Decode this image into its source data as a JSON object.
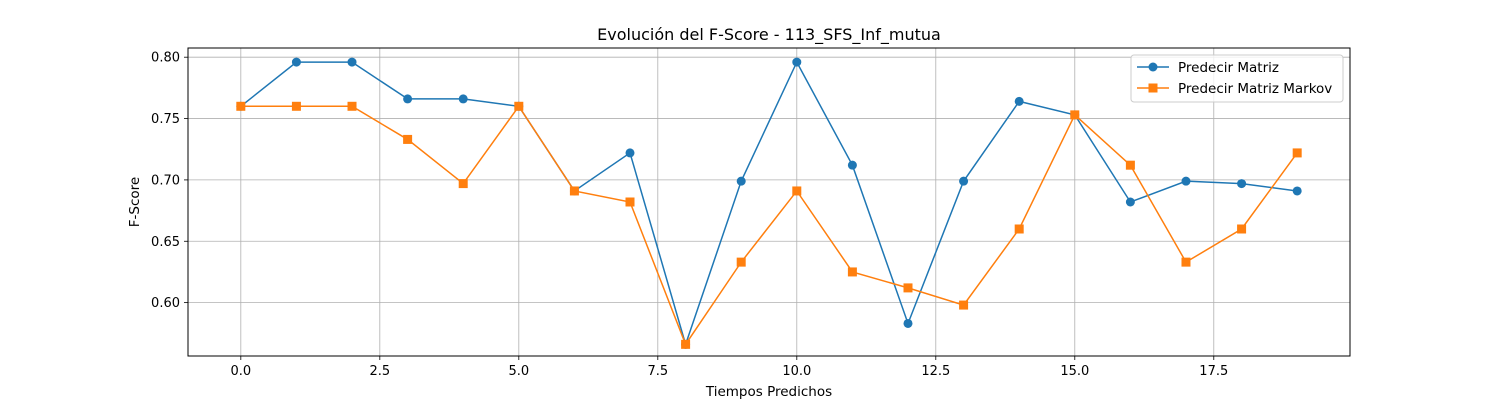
{
  "chart_data": {
    "type": "line",
    "title": "Evolución del F-Score - 113_SFS_Inf_mutua",
    "xlabel": "Tiempos Predichos",
    "ylabel": "F-Score",
    "xlim": [
      -0.95,
      19.95
    ],
    "ylim": [
      0.5565,
      0.8075
    ],
    "xticks": [
      0.0,
      2.5,
      5.0,
      7.5,
      10.0,
      12.5,
      15.0,
      17.5
    ],
    "xtick_labels": [
      "0.0",
      "2.5",
      "5.0",
      "7.5",
      "10.0",
      "12.5",
      "15.0",
      "17.5"
    ],
    "yticks": [
      0.6,
      0.65,
      0.7,
      0.75,
      0.8
    ],
    "ytick_labels": [
      "0.60",
      "0.65",
      "0.70",
      "0.75",
      "0.80"
    ],
    "grid": true,
    "legend_position": "top-right",
    "x": [
      0,
      1,
      2,
      3,
      4,
      5,
      6,
      7,
      8,
      9,
      10,
      11,
      12,
      13,
      14,
      15,
      16,
      17,
      18,
      19
    ],
    "series": [
      {
        "name": "Predecir Matriz",
        "color": "#1f77b4",
        "marker": "circle",
        "values": [
          0.76,
          0.796,
          0.796,
          0.766,
          0.766,
          0.76,
          0.691,
          0.722,
          0.566,
          0.699,
          0.796,
          0.712,
          0.583,
          0.699,
          0.764,
          0.753,
          0.682,
          0.699,
          0.697,
          0.691
        ]
      },
      {
        "name": "Predecir Matriz Markov",
        "color": "#ff7f0e",
        "marker": "square",
        "values": [
          0.76,
          0.76,
          0.76,
          0.733,
          0.697,
          0.76,
          0.691,
          0.682,
          0.566,
          0.633,
          0.691,
          0.625,
          0.612,
          0.598,
          0.66,
          0.753,
          0.712,
          0.633,
          0.66,
          0.722
        ]
      }
    ]
  }
}
